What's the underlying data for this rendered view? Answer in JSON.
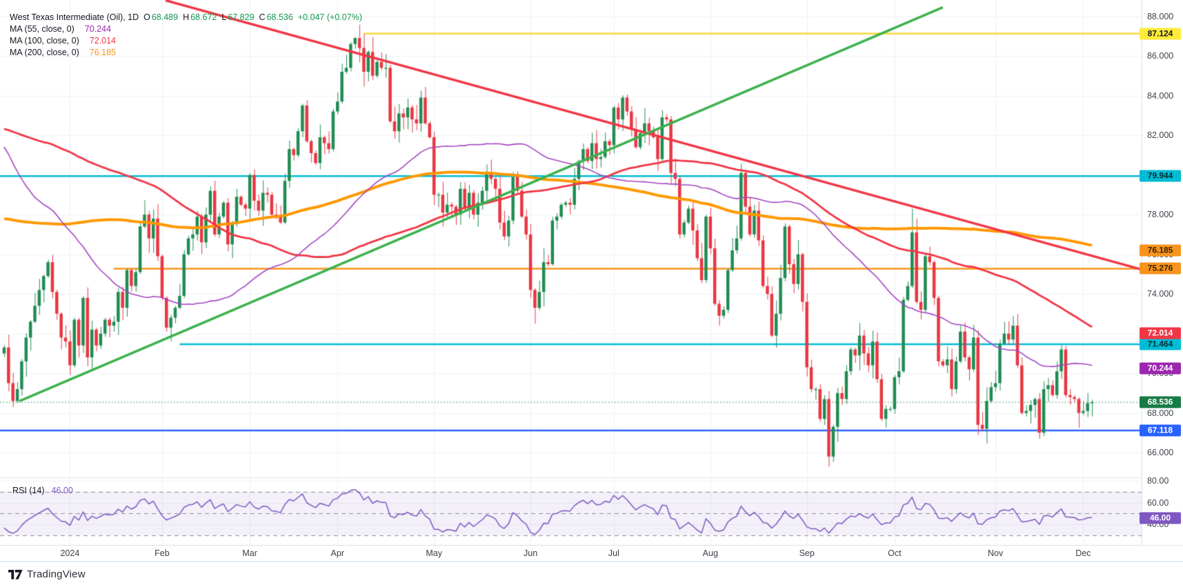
{
  "header": {
    "title": "West Texas Intermediate (Oil), 1D",
    "ohlc": {
      "o_label": "O",
      "o": "68.489",
      "h_label": "H",
      "h": "68.672",
      "l_label": "L",
      "l": "67.829",
      "c_label": "C",
      "c": "68.536",
      "change": "+0.047 (+0.07%)"
    },
    "ma_rows": [
      {
        "label": "MA (55, close, 0)",
        "value": "70.244"
      },
      {
        "label": "MA (100, close, 0)",
        "value": "72.014"
      },
      {
        "label": "MA (200, close, 0)",
        "value": "76.185"
      }
    ]
  },
  "rsi_pane": {
    "label": "RSI (14)",
    "value": "46.00",
    "scale_ticks": [
      "80.00",
      "60.00",
      "40.00"
    ],
    "scale_tick_values": [
      80,
      60,
      40
    ],
    "badge": {
      "text": "46.00",
      "value": 46.0,
      "bg": "#7E57C2",
      "fg": "#ffffff"
    }
  },
  "price_axis": {
    "tick_values": [
      88,
      86,
      84,
      82,
      80,
      78,
      76,
      74,
      72,
      70,
      68,
      66
    ],
    "tick_labels": [
      "88.000",
      "86.000",
      "84.000",
      "82.000",
      "80.000",
      "78.000",
      "76.000",
      "74.000",
      "72.000",
      "70.000",
      "68.000",
      "66.000"
    ]
  },
  "time_axis": {
    "labels": [
      {
        "text": "2024",
        "index": 15
      },
      {
        "text": "Feb",
        "index": 36
      },
      {
        "text": "Mar",
        "index": 56
      },
      {
        "text": "Apr",
        "index": 76
      },
      {
        "text": "May",
        "index": 98
      },
      {
        "text": "Jun",
        "index": 120
      },
      {
        "text": "Jul",
        "index": 139
      },
      {
        "text": "Aug",
        "index": 161
      },
      {
        "text": "Sep",
        "index": 183
      },
      {
        "text": "Oct",
        "index": 203
      },
      {
        "text": "Nov",
        "index": 226
      },
      {
        "text": "Dec",
        "index": 246
      }
    ]
  },
  "footer": {
    "brand": "TradingView"
  },
  "chart_data": {
    "type": "candlestick",
    "symbol": "West Texas Intermediate (Oil)",
    "interval": "1D",
    "last_bar": {
      "o": 68.489,
      "h": 68.672,
      "l": 67.829,
      "c": 68.536,
      "change": 0.047,
      "change_pct": 0.07
    },
    "y_range": [
      64.75,
      88.82
    ],
    "grid": true,
    "up_color": "#218c53",
    "down_color": "#e93742",
    "first_open": 71.0,
    "closes": [
      71.3,
      69.5,
      68.6,
      69.2,
      70.6,
      71.8,
      72.6,
      73.4,
      74.2,
      74.9,
      75.6,
      74.1,
      73.0,
      71.8,
      71.6,
      70.4,
      72.7,
      71.4,
      73.8,
      70.8,
      72.2,
      71.4,
      72.0,
      72.7,
      72.4,
      72.6,
      74.1,
      73.3,
      75.2,
      74.4,
      75.1,
      77.4,
      78.0,
      76.8,
      77.8,
      75.9,
      73.8,
      72.3,
      72.8,
      73.3,
      73.9,
      76.0,
      76.8,
      77.0,
      77.9,
      76.6,
      78.0,
      79.2,
      77.0,
      77.9,
      78.6,
      76.5,
      77.6,
      78.9,
      78.5,
      78.3,
      80.0,
      78.7,
      78.2,
      79.1,
      79.0,
      78.0,
      77.9,
      77.6,
      79.7,
      81.3,
      81.0,
      82.2,
      83.5,
      81.7,
      81.1,
      80.6,
      81.9,
      81.6,
      81.3,
      83.2,
      83.7,
      85.2,
      85.4,
      86.6,
      86.9,
      86.4,
      85.2,
      86.2,
      85.0,
      85.7,
      85.4,
      85.4,
      82.7,
      82.2,
      83.1,
      82.9,
      83.4,
      82.8,
      82.6,
      83.9,
      82.6,
      81.9,
      79.0,
      79.0,
      78.1,
      78.5,
      78.4,
      78.0,
      79.3,
      78.3,
      79.1,
      78.0,
      78.6,
      79.2,
      80.1,
      79.8,
      79.3,
      77.6,
      76.9,
      77.7,
      79.9,
      79.2,
      77.9,
      77.0,
      74.2,
      73.3,
      74.1,
      75.6,
      75.5,
      77.7,
      77.9,
      78.5,
      78.6,
      78.5,
      79.8,
      80.7,
      81.3,
      80.7,
      81.6,
      80.8,
      80.9,
      81.7,
      81.5,
      83.4,
      82.8,
      83.9,
      83.2,
      82.3,
      81.4,
      82.1,
      82.6,
      82.2,
      81.9,
      80.8,
      82.9,
      82.8,
      80.1,
      79.8,
      77.0,
      77.6,
      78.3,
      77.2,
      75.8,
      74.7,
      77.9,
      76.3,
      73.5,
      72.9,
      73.2,
      75.2,
      76.2,
      76.8,
      80.1,
      78.4,
      77.0,
      78.2,
      76.7,
      74.4,
      74.0,
      71.9,
      73.0,
      74.8,
      77.4,
      75.5,
      74.5,
      76.0,
      73.6,
      70.3,
      69.2,
      69.2,
      67.7,
      68.7,
      65.8,
      67.3,
      69.0,
      68.7,
      70.1,
      71.2,
      70.9,
      71.9,
      71.0,
      70.4,
      71.6,
      69.7,
      67.7,
      68.2,
      68.2,
      69.8,
      70.1,
      73.7,
      74.4,
      77.1,
      73.6,
      73.2,
      75.9,
      75.6,
      73.8,
      70.6,
      70.4,
      70.7,
      69.2,
      70.6,
      72.1,
      70.8,
      70.2,
      71.8,
      67.4,
      67.2,
      68.6,
      69.3,
      69.5,
      71.5,
      72.0,
      71.7,
      72.4,
      70.4,
      68.0,
      68.1,
      68.4,
      68.7,
      67.0,
      69.2,
      69.4,
      68.9,
      70.1,
      71.2,
      68.9,
      68.8,
      68.7,
      68.0,
      68.1,
      68.489,
      68.536
    ],
    "prehistory_closes": [
      79.0,
      78.1,
      77.1,
      76.6,
      74.1,
      73.4,
      74.7,
      77.1,
      78.1,
      78.6,
      78.3,
      76.3,
      76.2,
      76.5,
      76.7,
      75.4,
      74.0,
      75.4,
      76.3,
      77.0,
      77.1,
      77.7,
      76.7,
      78.1,
      77.0,
      76.7,
      77.6,
      76.7,
      74.8,
      73.8,
      71.3,
      67.6,
      66.7,
      65.9,
      67.4,
      64.1,
      66.4,
      67.2,
      69.3,
      70.0,
      69.9,
      72.9,
      74.4,
      75.7,
      80.4,
      80.7,
      80.6,
      80.5,
      79.7,
      81.5,
      83.3,
      82.5,
      82.1,
      81.0,
      80.9,
      79.2,
      77.9,
      77.1,
      78.8,
      79.2,
      76.8,
      76.7,
      75.7,
      68.6,
      71.8,
      68.8,
      71.3,
      73.2,
      73.7,
      72.6,
      70.0,
      70.1,
      71.1,
      70.1,
      71.6,
      72.8,
      71.9,
      72.9,
      74.3,
      72.7,
      71.8,
      69.5,
      68.1,
      68.1,
      70.1,
      71.7,
      69.9,
      72.2,
      71.3,
      69.2,
      67.1,
      70.2,
      68.3,
      69.4,
      70.5,
      71.3,
      72.5,
      71.2,
      69.5,
      69.2,
      67.7,
      69.4,
      70.3,
      69.9,
      70.6,
      70.6,
      69.8,
      71.8,
      71.9,
      72.0,
      73.9,
      75.4,
      74.8,
      75.7,
      76.9,
      75.4,
      74.2,
      75.6,
      76.9,
      77.1,
      78.7,
      79.6,
      80.1,
      80.6,
      81.8,
      81.4,
      79.5,
      81.6,
      82.8,
      82.6,
      80.0,
      79.5,
      84.4,
      84.1,
      83.2,
      82.7,
      81.3,
      80.7,
      80.4,
      80.9,
      81.4,
      79.6,
      80.1,
      81.6,
      83.6,
      81.7,
      83.6,
      85.6,
      85.5,
      86.5,
      85.7,
      87.5,
      87.3,
      88.5,
      89.0,
      88.8,
      90.2,
      91.2,
      90.5,
      89.7,
      91.0,
      90.3,
      89.6,
      93.7,
      92.0,
      91.7,
      90.8,
      88.8,
      89.2,
      84.2,
      84.5,
      82.8,
      83.0,
      86.4,
      87.7,
      86.7,
      83.5,
      85.5,
      88.3,
      87.3,
      88.8,
      89.4,
      88.1,
      85.5,
      83.7,
      83.6,
      85.4,
      83.2,
      81.0,
      82.8,
      80.5,
      77.9,
      80.9,
      81.0,
      77.3,
      75.3,
      76.7,
      75.7,
      78.3,
      76.7,
      77.4,
      77.8,
      77.3,
      76.0,
      77.8,
      74.9,
      76.4,
      75.5,
      75.7,
      76.0,
      75.9,
      74.1,
      73.0,
      72.3,
      69.4,
      69.3
    ],
    "wick_overrides": {
      "2": {
        "l": 68.3
      },
      "80": {
        "h": 86.95
      },
      "82": {
        "h": 87.124
      },
      "121": {
        "l": 72.5
      },
      "188": {
        "l": 65.3
      },
      "207": {
        "h": 78.3
      },
      "222": {
        "l": 66.9
      },
      "236": {
        "l": 66.7
      },
      "248": {
        "o": 68.489,
        "h": 68.672,
        "l": 67.829
      }
    },
    "moving_averages": [
      {
        "period": 55,
        "value": 70.244,
        "line_color": "#A346C2",
        "badge_bg": "#9C27B0",
        "badge_fg": "#ffffff",
        "label": "70.244",
        "width": 1.6
      },
      {
        "period": 100,
        "value": 72.014,
        "line_color": "#F23645",
        "badge_bg": "#F23645",
        "badge_fg": "#ffffff",
        "label": "72.014",
        "width": 2.8
      },
      {
        "period": 200,
        "value": 76.185,
        "line_color": "#FF9800",
        "badge_bg": "#F7941D",
        "badge_fg": "#3a2300",
        "label": "76.185",
        "width": 4
      }
    ],
    "levels": [
      {
        "price": 87.124,
        "label": "87.124",
        "line_color": "#FDD835",
        "width": 2.5,
        "from_index": 82,
        "badge_bg": "#FFEB3B",
        "badge_fg": "#131722",
        "style": "solid"
      },
      {
        "price": 79.944,
        "label": "79.944",
        "line_color": "#00BCD4",
        "width": 2.5,
        "from_index": -1,
        "badge_bg": "#00BCD4",
        "badge_fg": "#0b2e33",
        "style": "solid"
      },
      {
        "price": 75.276,
        "label": "75.276",
        "line_color": "#F7941D",
        "width": 2.5,
        "from_index": 25,
        "badge_bg": "#F7941D",
        "badge_fg": "#3a2300",
        "style": "solid"
      },
      {
        "price": 71.464,
        "label": "71.464",
        "line_color": "#00BCD4",
        "width": 2.5,
        "from_index": 40,
        "badge_bg": "#00BCD4",
        "badge_fg": "#0b2e33",
        "style": "solid"
      },
      {
        "price": 67.118,
        "label": "67.118",
        "line_color": "#2962FF",
        "width": 2.5,
        "from_index": -1,
        "badge_bg": "#2962FF",
        "badge_fg": "#ffffff",
        "style": "solid"
      },
      {
        "price": 68.536,
        "label": "68.536",
        "line_color": "#177B47",
        "width": 1,
        "from_index": -1,
        "badge_bg": "#177B47",
        "badge_fg": "#ffffff",
        "style": "dotted"
      }
    ],
    "trendlines": [
      {
        "name": "descending-trendline",
        "from_index": 36.8,
        "from_price": 88.8,
        "to_index": 259,
        "to_price": 75.25,
        "color": "#F23645",
        "width": 3.5
      },
      {
        "name": "ascending-trendline",
        "from_index": 3.5,
        "from_price": 68.6,
        "to_index": 214,
        "to_price": 88.45,
        "color": "#3BB14D",
        "width": 3.5
      }
    ],
    "rsi": {
      "period": 14,
      "current": 46.0,
      "bands": [
        70,
        50,
        30
      ],
      "band_color": "#8a8d97",
      "fill_color": "rgba(126,87,194,0.09)",
      "line_color": "#7E57C2",
      "visible_range": [
        21,
        81.3
      ]
    }
  }
}
